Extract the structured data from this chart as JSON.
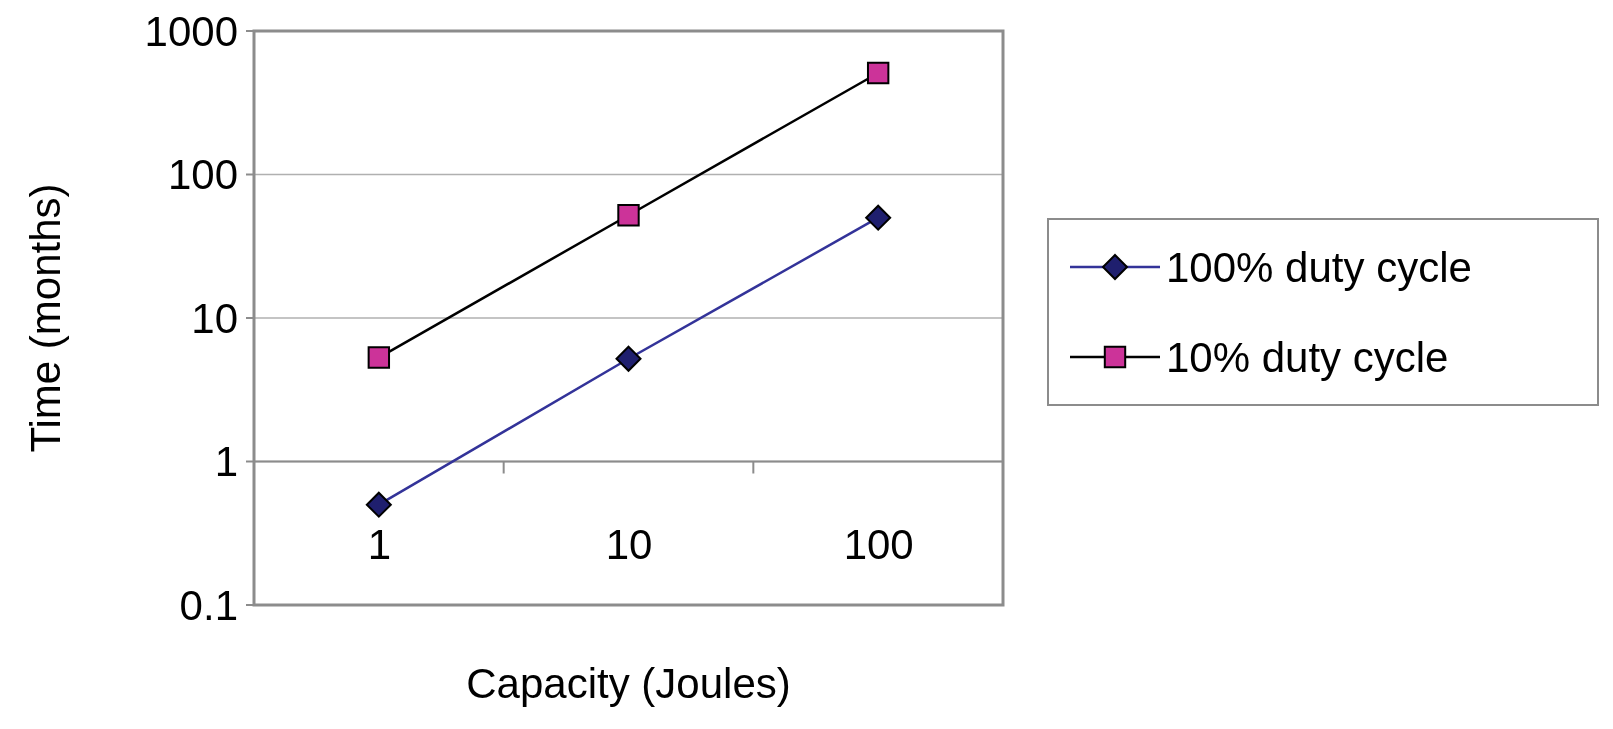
{
  "chart_data": {
    "type": "line",
    "xlabel": "Capacity (Joules)",
    "ylabel": "Time (months)",
    "categories": [
      "1",
      "10",
      "100"
    ],
    "series": [
      {
        "name": "100% duty cycle",
        "color": "#333399",
        "values": [
          0.5,
          5.2,
          50
        ],
        "marker": "diamond"
      },
      {
        "name": "10% duty cycle",
        "color": "#000000",
        "values": [
          5.3,
          52,
          510
        ],
        "marker": "square"
      }
    ],
    "ref_lines": [
      {
        "axis": "y",
        "value": 1,
        "color": "#8c8c8c"
      }
    ],
    "log": "y",
    "ylim": [
      0.1,
      1000
    ],
    "yticks": [
      0.1,
      1,
      10,
      100,
      1000
    ],
    "grid": "y",
    "legend": "right"
  }
}
